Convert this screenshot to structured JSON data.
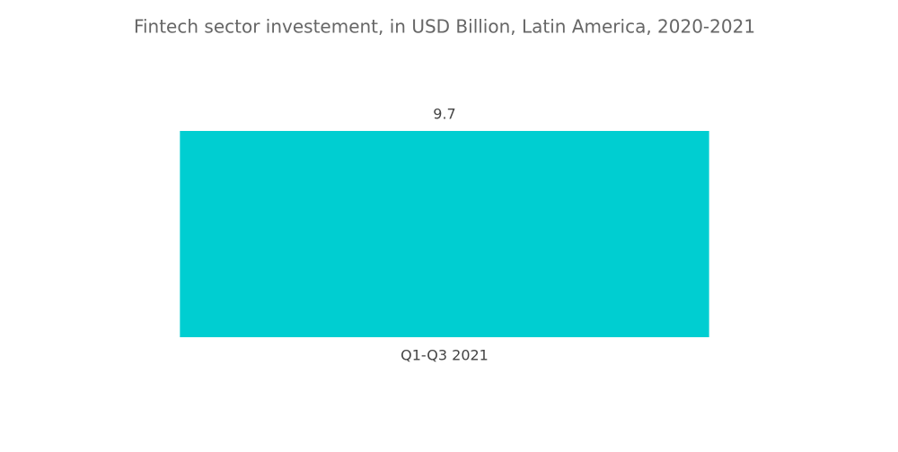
{
  "chart_data": {
    "type": "bar",
    "title": "Fintech sector investement, in USD Billion, Latin America, 2020-2021",
    "categories": [
      "Q1-Q3 2021"
    ],
    "values": [
      9.7
    ],
    "color": "#00ced1"
  }
}
